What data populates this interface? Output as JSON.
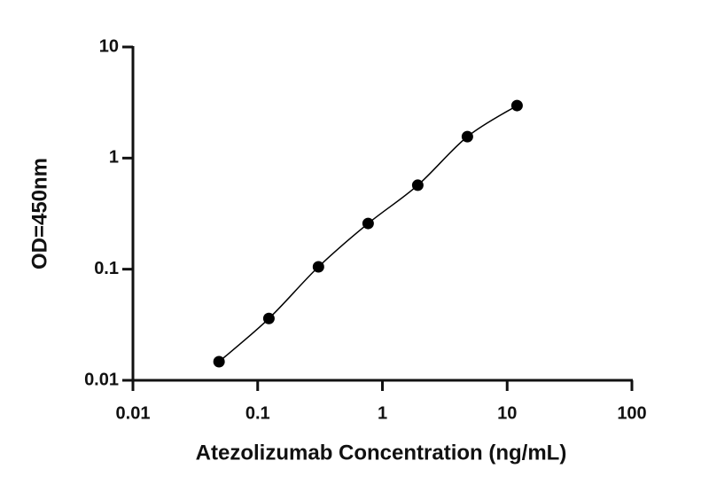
{
  "chart_data": {
    "type": "scatter",
    "x_label": "Atezolizumab Concentration (ng/mL)",
    "y_label": "OD=450nm",
    "x": [
      0.049,
      0.123,
      0.307,
      0.768,
      1.92,
      4.8,
      12
    ],
    "series": [
      {
        "color": "#000000",
        "values": [
          0.0147,
          0.036,
          0.105,
          0.258,
          0.57,
          1.56,
          2.97
        ]
      }
    ],
    "x_log": true,
    "y_log": true,
    "fit_curve": true,
    "xlim": [
      0.01,
      100
    ],
    "xticks": [
      0.01,
      0.1,
      1,
      10,
      100
    ],
    "ylim": [
      0.01,
      10
    ],
    "yticks": [
      0.01,
      0.1,
      1,
      10
    ]
  }
}
